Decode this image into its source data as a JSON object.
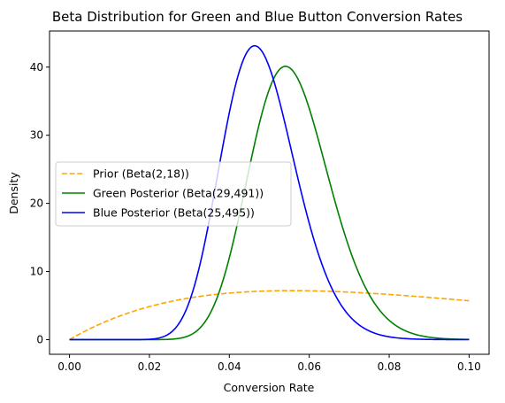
{
  "chart_data": {
    "type": "line",
    "title": "Beta Distribution for Green and Blue Button Conversion Rates",
    "xlabel": "Conversion Rate",
    "ylabel": "Density",
    "xlim": [
      -0.005,
      0.105
    ],
    "ylim": [
      -2.15,
      45.3
    ],
    "xticks": [
      {
        "value": 0.0,
        "label": "0.00"
      },
      {
        "value": 0.02,
        "label": "0.02"
      },
      {
        "value": 0.04,
        "label": "0.04"
      },
      {
        "value": 0.06,
        "label": "0.06"
      },
      {
        "value": 0.08,
        "label": "0.08"
      },
      {
        "value": 0.1,
        "label": "0.10"
      }
    ],
    "yticks": [
      {
        "value": 0,
        "label": "0"
      },
      {
        "value": 10,
        "label": "10"
      },
      {
        "value": 20,
        "label": "20"
      },
      {
        "value": 30,
        "label": "30"
      },
      {
        "value": 40,
        "label": "40"
      }
    ],
    "grid": false,
    "legend_position": "center-left",
    "x_range": [
      0.0,
      0.1
    ],
    "series": [
      {
        "name": "Prior (Beta(2,18))",
        "color": "#ffa500",
        "style": "dashed",
        "alpha": 2,
        "beta": 18
      },
      {
        "name": "Green Posterior (Beta(29,491))",
        "color": "#008000",
        "style": "solid",
        "alpha": 29,
        "beta": 491
      },
      {
        "name": "Blue Posterior (Beta(25,495))",
        "color": "#0000ff",
        "style": "solid",
        "alpha": 25,
        "beta": 495
      }
    ]
  }
}
